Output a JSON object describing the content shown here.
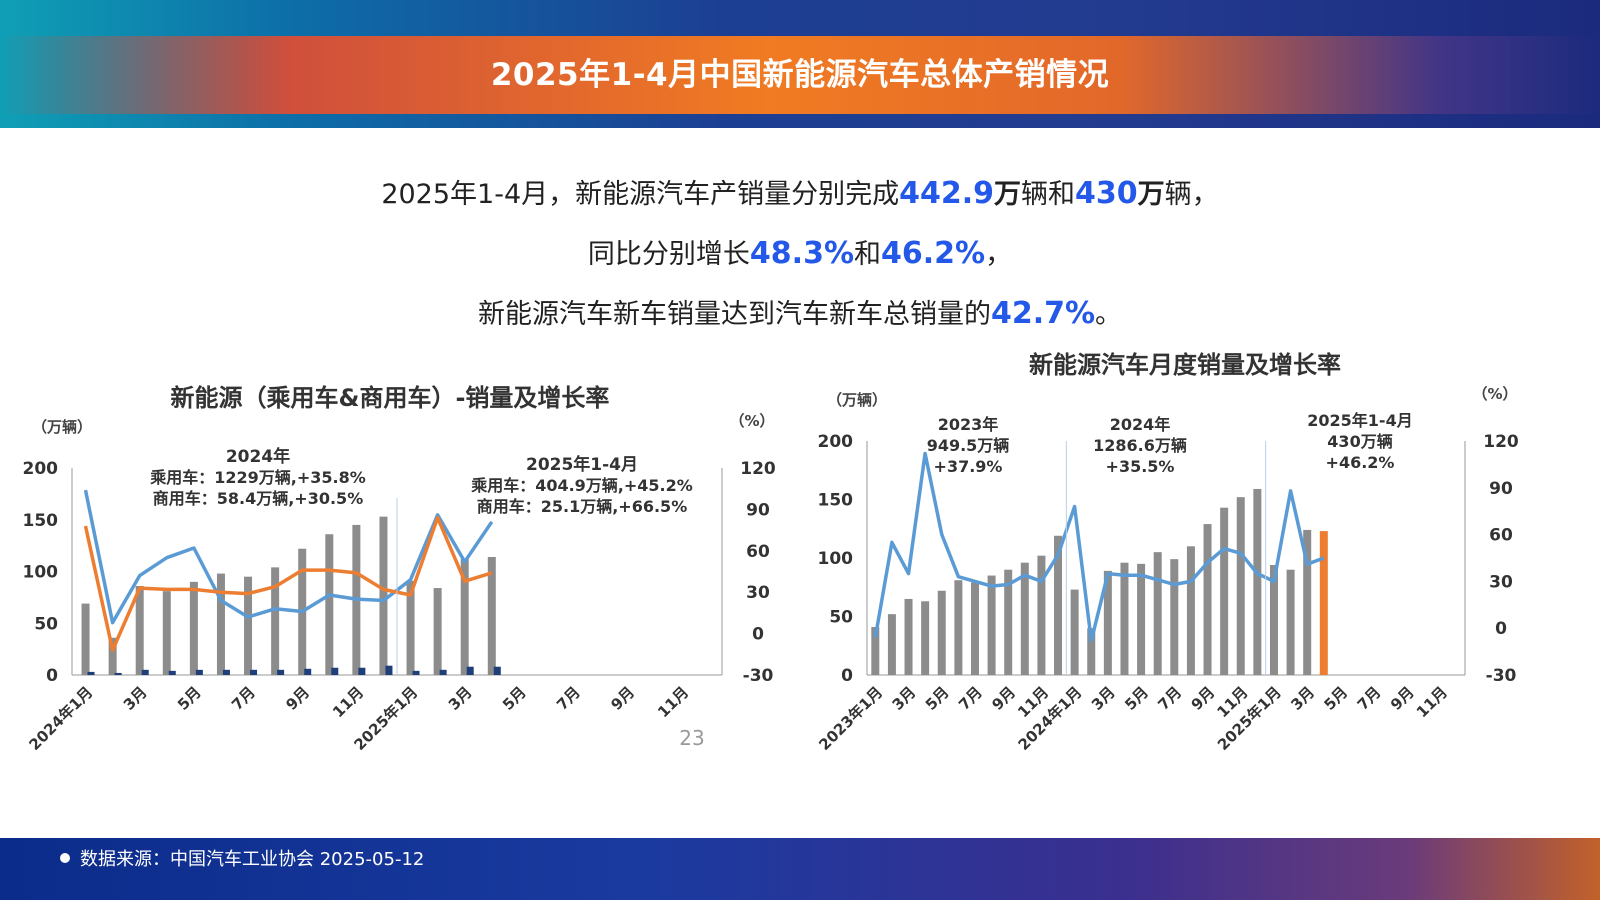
{
  "header": {
    "title": "2025年1-4月中国新能源汽车总体产销情况"
  },
  "summary": {
    "l1_pre": "2025年1-4月，新能源汽车产销量分别完成",
    "l1_v1": "442.9",
    "l1_u1": "万",
    "l1_m1": "辆和",
    "l1_v2": "430",
    "l1_u2": "万",
    "l1_end": "辆，",
    "l2_pre": "同比分别增长",
    "l2_v1": "48.3%",
    "l2_mid": "和",
    "l2_v2": "46.2%",
    "l2_end": "，",
    "l3_pre": "新能源汽车新车销量达到汽车新车总销量的",
    "l3_v": "42.7%",
    "l3_end": "。"
  },
  "footer": {
    "source": "数据来源：中国汽车工业协会",
    "date": "2025-05-12"
  },
  "chart_data": [
    {
      "type": "bar",
      "title": "新能源（乘用车&商用车）-销量及增长率",
      "ylabel_left": "（万辆）",
      "ylabel_right": "（%）",
      "ylim_left": [
        0,
        200
      ],
      "ylim_right": [
        -30,
        120
      ],
      "yticks_left": [
        "0",
        "50",
        "100",
        "150",
        "200"
      ],
      "yticks_right": [
        "-30",
        "0",
        "30",
        "60",
        "90",
        "120"
      ],
      "tick_labels": [
        "2024年1月",
        "3月",
        "5月",
        "7月",
        "9月",
        "11月",
        "2025年1月",
        "3月",
        "5月",
        "7月",
        "9月",
        "11月"
      ],
      "slots": 24,
      "annotation_2024": [
        "2024年",
        "乘用车：1229万辆,+35.8%",
        "商用车：58.4万辆,+30.5%"
      ],
      "annotation_2025": [
        "2025年1-4月",
        "乘用车：404.9万辆,+45.2%",
        "商用车：25.1万辆,+66.5%"
      ],
      "corner_label": "23",
      "colors": {
        "bar": "#8c8c8c",
        "commercial_bar": "#1f3f7a",
        "line_blue": "#5b9bd5",
        "line_orange": "#ed7d31"
      },
      "series": [
        {
          "kind": "bar",
          "values": [
            69,
            36,
            86,
            81,
            90,
            98,
            95,
            104,
            122,
            136,
            145,
            153,
            91,
            84,
            112,
            114
          ]
        },
        {
          "kind": "bar",
          "values": [
            3,
            2,
            5,
            4,
            5,
            5,
            5,
            5,
            6,
            7,
            7,
            9,
            4,
            5,
            8,
            8
          ]
        },
        {
          "kind": "line",
          "values": [
            104,
            8,
            42,
            55,
            62,
            24,
            12,
            18,
            16,
            28,
            25,
            24,
            39,
            86,
            52,
            81
          ]
        },
        {
          "kind": "line",
          "values": [
            78,
            -12,
            33,
            32,
            32,
            30,
            29,
            34,
            46,
            46,
            44,
            32,
            28,
            84,
            38,
            44
          ]
        }
      ]
    },
    {
      "type": "bar",
      "title": "新能源汽车月度销量及增长率",
      "ylabel_left": "（万辆）",
      "ylabel_right": "（%）",
      "ylim_left": [
        0,
        200
      ],
      "ylim_right": [
        -30,
        120
      ],
      "yticks_left": [
        "0",
        "50",
        "100",
        "150",
        "200"
      ],
      "yticks_right": [
        "-30",
        "0",
        "30",
        "60",
        "90",
        "120"
      ],
      "tick_labels": [
        "2023年1月",
        "3月",
        "5月",
        "7月",
        "9月",
        "11月",
        "2024年1月",
        "3月",
        "5月",
        "7月",
        "9月",
        "11月",
        "2025年1月",
        "3月",
        "5月",
        "7月",
        "9月",
        "11月"
      ],
      "slots": 36,
      "annotation_2023": [
        "2023年",
        "949.5万辆",
        "+37.9%"
      ],
      "annotation_2024": [
        "2024年",
        "1286.6万辆",
        "+35.5%"
      ],
      "annotation_2025": [
        "2025年1-4月",
        "430万辆",
        "+46.2%"
      ],
      "colors": {
        "bar": "#8c8c8c",
        "highlight_bar": "#ed7d31",
        "line_blue": "#5b9bd5"
      },
      "series": [
        {
          "kind": "bar",
          "values": [
            41,
            52,
            65,
            63,
            72,
            81,
            79,
            85,
            90,
            96,
            102,
            119,
            73,
            40,
            89,
            96,
            95,
            105,
            99,
            110,
            129,
            143,
            152,
            159,
            94,
            90,
            124,
            123
          ]
        },
        {
          "kind": "line",
          "values": [
            -6,
            55,
            35,
            112,
            60,
            33,
            30,
            27,
            28,
            34,
            30,
            47,
            78,
            -8,
            35,
            34,
            34,
            31,
            28,
            30,
            42,
            51,
            48,
            35,
            30,
            88,
            41,
            45
          ]
        }
      ]
    }
  ]
}
